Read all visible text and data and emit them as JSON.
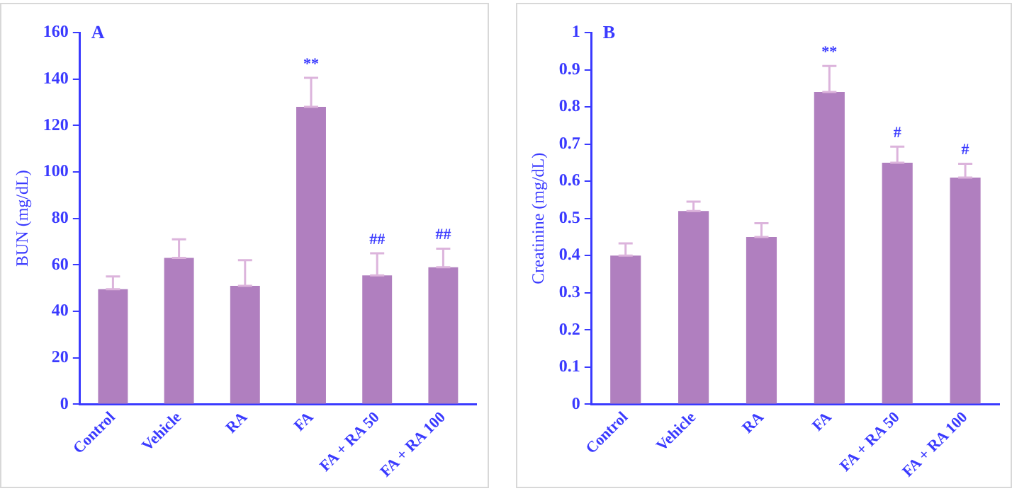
{
  "chart_data": [
    {
      "type": "bar",
      "title": "A",
      "ylabel": "BUN (mg/dL)",
      "categories": [
        "Control",
        "Vehicle",
        "RA",
        "FA",
        "FA + RA 50",
        "FA + RA 100"
      ],
      "series": [
        {
          "color": "#b07fbf",
          "values": [
            49.5,
            63,
            51,
            128,
            55.5,
            59
          ],
          "errors": [
            [
              49.5,
              55
            ],
            [
              63,
              71
            ],
            [
              51,
              62
            ],
            [
              128,
              140.5
            ],
            [
              55.5,
              65
            ],
            [
              59,
              67
            ]
          ]
        }
      ],
      "ylim": [
        0,
        160
      ],
      "yticks": [
        0,
        20,
        40,
        60,
        80,
        100,
        120,
        140,
        160
      ],
      "grid": false,
      "legend": false,
      "annotations": [
        {
          "text": "**",
          "x": "FA",
          "y": 140.5
        },
        {
          "text": "##",
          "x": "FA + RA 50",
          "y": 65
        },
        {
          "text": "##",
          "x": "FA + RA 100",
          "y": 67
        }
      ]
    },
    {
      "type": "bar",
      "title": "B",
      "ylabel": "Creatinine (mg/dL)",
      "categories": [
        "Control",
        "Vehicle",
        "RA",
        "FA",
        "FA + RA 50",
        "FA + RA 100"
      ],
      "series": [
        {
          "color": "#b07fbf",
          "values": [
            0.4,
            0.52,
            0.45,
            0.84,
            0.65,
            0.61
          ],
          "errors": [
            [
              0.4,
              0.433
            ],
            [
              0.52,
              0.545
            ],
            [
              0.45,
              0.487
            ],
            [
              0.84,
              0.91
            ],
            [
              0.65,
              0.693
            ],
            [
              0.61,
              0.647
            ]
          ]
        }
      ],
      "ylim": [
        0,
        1
      ],
      "yticks": [
        0,
        0.1,
        0.2,
        0.3,
        0.4,
        0.5,
        0.6,
        0.7,
        0.8,
        0.9,
        1
      ],
      "grid": false,
      "legend": false,
      "annotations": [
        {
          "text": "**",
          "x": "FA",
          "y": 0.91
        },
        {
          "text": "#",
          "x": "FA + RA 50",
          "y": 0.693
        },
        {
          "text": "#",
          "x": "FA + RA 100",
          "y": 0.647
        }
      ]
    }
  ]
}
